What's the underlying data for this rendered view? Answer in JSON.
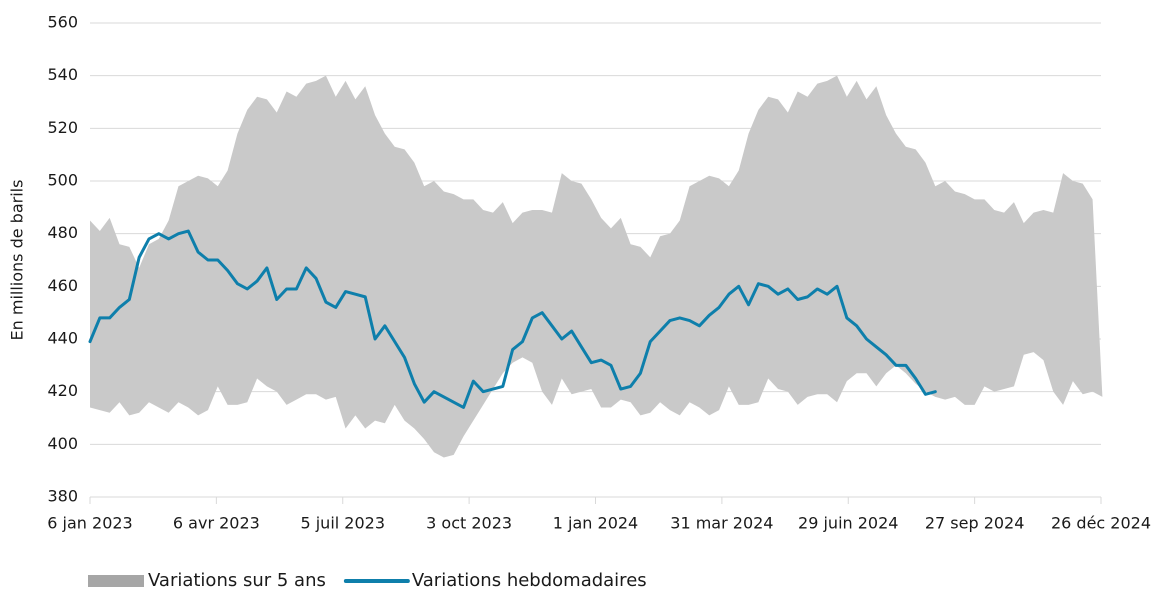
{
  "chart_data": {
    "type": "line",
    "y_label": "En millions de barils",
    "x": [
      "2023-01-06",
      "2023-01-13",
      "2023-01-20",
      "2023-01-27",
      "2023-02-03",
      "2023-02-10",
      "2023-02-17",
      "2023-02-24",
      "2023-03-03",
      "2023-03-10",
      "2023-03-17",
      "2023-03-24",
      "2023-03-31",
      "2023-04-07",
      "2023-04-14",
      "2023-04-21",
      "2023-04-28",
      "2023-05-05",
      "2023-05-12",
      "2023-05-19",
      "2023-05-26",
      "2023-06-02",
      "2023-06-09",
      "2023-06-16",
      "2023-06-23",
      "2023-06-30",
      "2023-07-07",
      "2023-07-14",
      "2023-07-21",
      "2023-07-28",
      "2023-08-04",
      "2023-08-11",
      "2023-08-18",
      "2023-08-25",
      "2023-09-01",
      "2023-09-08",
      "2023-09-15",
      "2023-09-22",
      "2023-09-29",
      "2023-10-06",
      "2023-10-13",
      "2023-10-20",
      "2023-10-27",
      "2023-11-03",
      "2023-11-10",
      "2023-11-17",
      "2023-11-24",
      "2023-12-01",
      "2023-12-08",
      "2023-12-15",
      "2023-12-22",
      "2023-12-29",
      "2024-01-05",
      "2024-01-12",
      "2024-01-19",
      "2024-01-26",
      "2024-02-02",
      "2024-02-09",
      "2024-02-16",
      "2024-02-23",
      "2024-03-01",
      "2024-03-08",
      "2024-03-15",
      "2024-03-22",
      "2024-03-29",
      "2024-04-05",
      "2024-04-12",
      "2024-04-19",
      "2024-04-26",
      "2024-05-03",
      "2024-05-10",
      "2024-05-17",
      "2024-05-24",
      "2024-05-31",
      "2024-06-07",
      "2024-06-14",
      "2024-06-21",
      "2024-06-28",
      "2024-07-05",
      "2024-07-12",
      "2024-07-19",
      "2024-07-26",
      "2024-08-02",
      "2024-08-09",
      "2024-08-16",
      "2024-08-23",
      "2024-08-30",
      "2024-09-06",
      "2024-09-13",
      "2024-09-20",
      "2024-09-27",
      "2024-10-04",
      "2024-10-11",
      "2024-10-18",
      "2024-10-25",
      "2024-11-01",
      "2024-11-08",
      "2024-11-15",
      "2024-11-22",
      "2024-11-29",
      "2024-12-06",
      "2024-12-13",
      "2024-12-20",
      "2024-12-27"
    ],
    "series": [
      {
        "name": "Variations sur 5 ans",
        "color": "#c9c9c9",
        "kind": "band",
        "high": [
          485,
          481,
          486,
          476,
          475,
          467,
          476,
          478,
          485,
          498,
          500,
          502,
          501,
          498,
          504,
          518,
          527,
          532,
          531,
          526,
          534,
          532,
          537,
          538,
          540,
          532,
          538,
          531,
          536,
          525,
          518,
          513,
          512,
          507,
          498,
          500,
          496,
          495,
          493,
          493,
          489,
          488,
          492,
          484,
          488,
          489,
          489,
          488,
          503,
          500,
          499,
          493,
          486,
          482,
          486,
          476,
          475,
          471,
          479,
          480,
          485,
          498,
          500,
          502,
          501,
          498,
          504,
          518,
          527,
          532,
          531,
          526,
          534,
          532,
          537,
          538,
          540,
          532,
          538,
          531,
          536,
          525,
          518,
          513,
          512,
          507,
          498,
          500,
          496,
          495,
          493,
          493,
          489,
          488,
          492,
          484,
          488,
          489,
          488,
          503,
          500,
          499,
          493,
          418
        ],
        "low": [
          414,
          413,
          412,
          416,
          411,
          412,
          416,
          414,
          412,
          416,
          414,
          411,
          413,
          422,
          415,
          415,
          416,
          425,
          422,
          420,
          415,
          417,
          419,
          419,
          417,
          418,
          406,
          411,
          406,
          409,
          408,
          415,
          409,
          406,
          402,
          397,
          395,
          396,
          403,
          409,
          415,
          421,
          427,
          431,
          433,
          431,
          420,
          415,
          425,
          419,
          420,
          421,
          414,
          414,
          417,
          416,
          411,
          412,
          416,
          413,
          411,
          416,
          414,
          411,
          413,
          422,
          415,
          415,
          416,
          425,
          421,
          420,
          415,
          418,
          419,
          419,
          416,
          424,
          427,
          427,
          422,
          427,
          430,
          427,
          423,
          420,
          418,
          417,
          418,
          415,
          415,
          422,
          420,
          421,
          422,
          434,
          435,
          432,
          420,
          415,
          424,
          419,
          420,
          418
        ]
      },
      {
        "name": "Variations hebdomadaires",
        "color": "#0e7fab",
        "kind": "line",
        "values": [
          439,
          448,
          448,
          452,
          455,
          471,
          478,
          480,
          478,
          480,
          481,
          473,
          470,
          470,
          466,
          461,
          459,
          462,
          467,
          455,
          459,
          459,
          467,
          463,
          454,
          452,
          458,
          457,
          456,
          440,
          445,
          439,
          433,
          423,
          416,
          420,
          418,
          416,
          414,
          424,
          420,
          421,
          422,
          436,
          439,
          448,
          450,
          445,
          440,
          443,
          437,
          431,
          432,
          430,
          421,
          422,
          427,
          439,
          443,
          447,
          448,
          447,
          445,
          449,
          452,
          457,
          460,
          453,
          461,
          460,
          457,
          459,
          455,
          456,
          459,
          457,
          460,
          448,
          445,
          440,
          437,
          434,
          430,
          430,
          425,
          419,
          420,
          null,
          null,
          null,
          null,
          null,
          null,
          null,
          null,
          null,
          null,
          null,
          null,
          null,
          null,
          null,
          null,
          null
        ]
      }
    ],
    "xlim": [
      "2023-01-06",
      "2024-12-26"
    ],
    "xticks": [
      {
        "value": "2023-01-06",
        "label": "6 jan 2023"
      },
      {
        "value": "2023-04-06",
        "label": "6 avr 2023"
      },
      {
        "value": "2023-07-05",
        "label": "5 juil 2023"
      },
      {
        "value": "2023-10-03",
        "label": "3 oct 2023"
      },
      {
        "value": "2024-01-01",
        "label": "1 jan 2024"
      },
      {
        "value": "2024-03-31",
        "label": "31 mar 2024"
      },
      {
        "value": "2024-06-29",
        "label": "29 juin 2024"
      },
      {
        "value": "2024-09-27",
        "label": "27 sep 2024"
      },
      {
        "value": "2024-12-26",
        "label": "26 déc 2024"
      }
    ],
    "ylim": [
      380,
      560
    ],
    "yticks": [
      380,
      400,
      420,
      440,
      460,
      480,
      500,
      520,
      540,
      560
    ],
    "grid": true,
    "legend": "bottom"
  }
}
